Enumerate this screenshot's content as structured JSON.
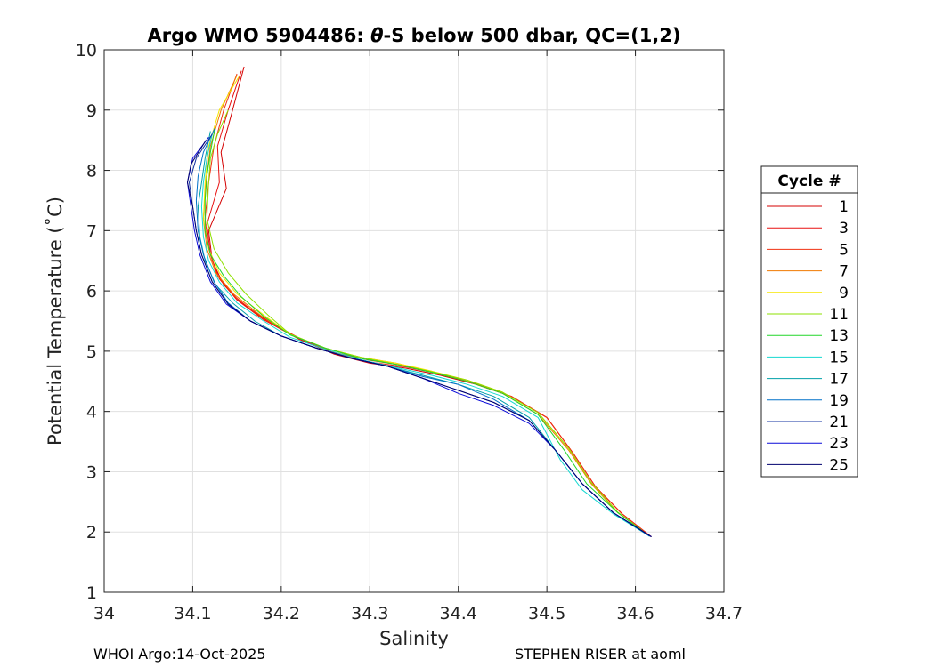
{
  "chart_data": {
    "type": "line",
    "title_prefix": "Argo WMO 5904486: ",
    "title_symbol": "θ",
    "title_suffix": "-S below 500 dbar,  QC=(1,2)",
    "xlabel": "Salinity",
    "ylabel": "Potential Temperature (˚C)",
    "xlim": [
      34.0,
      34.7
    ],
    "ylim": [
      1,
      10
    ],
    "xticks": [
      34,
      34.1,
      34.2,
      34.3,
      34.4,
      34.5,
      34.6,
      34.7
    ],
    "xtick_labels": [
      "34",
      "34.1",
      "34.2",
      "34.3",
      "34.4",
      "34.5",
      "34.6",
      "34.7"
    ],
    "yticks": [
      1,
      2,
      3,
      4,
      5,
      6,
      7,
      8,
      9,
      10
    ],
    "ytick_labels": [
      "1",
      "2",
      "3",
      "4",
      "5",
      "6",
      "7",
      "8",
      "9",
      "10"
    ],
    "grid": true,
    "legend": {
      "title": "Cycle #",
      "position": "outside-right",
      "entries": [
        "1",
        "3",
        "5",
        "7",
        "9",
        "11",
        "13",
        "15",
        "17",
        "19",
        "21",
        "23",
        "25"
      ]
    },
    "series": [
      {
        "name": "1",
        "color": "#d40000",
        "x": [
          34.158,
          34.145,
          34.132,
          34.138,
          34.118,
          34.122,
          34.135,
          34.155,
          34.185,
          34.22,
          34.26,
          34.3,
          34.34,
          34.38,
          34.42,
          34.46,
          34.5,
          34.53,
          34.555,
          34.585,
          34.618
        ],
        "y": [
          9.72,
          9.0,
          8.3,
          7.7,
          7.0,
          6.5,
          6.1,
          5.8,
          5.5,
          5.2,
          4.95,
          4.8,
          4.72,
          4.6,
          4.45,
          4.25,
          3.9,
          3.3,
          2.75,
          2.3,
          1.92
        ]
      },
      {
        "name": "3",
        "color": "#e81010",
        "x": [
          34.155,
          34.14,
          34.128,
          34.13,
          34.116,
          34.12,
          34.13,
          34.15,
          34.18,
          34.22,
          34.26,
          34.3,
          34.34,
          34.38,
          34.42,
          34.46,
          34.5,
          34.53,
          34.555,
          34.585,
          34.618
        ],
        "y": [
          9.65,
          9.0,
          8.4,
          7.8,
          7.1,
          6.6,
          6.2,
          5.85,
          5.52,
          5.2,
          4.97,
          4.82,
          4.74,
          4.62,
          4.45,
          4.25,
          3.9,
          3.3,
          2.75,
          2.3,
          1.92
        ]
      },
      {
        "name": "5",
        "color": "#f03010",
        "x": [
          34.15,
          34.135,
          34.124,
          34.118,
          34.114,
          34.118,
          34.128,
          34.148,
          34.178,
          34.22,
          34.26,
          34.3,
          34.34,
          34.38,
          34.42,
          34.46,
          34.5,
          34.53,
          34.555,
          34.585,
          34.618
        ],
        "y": [
          9.6,
          9.0,
          8.4,
          7.8,
          7.2,
          6.7,
          6.25,
          5.9,
          5.55,
          5.22,
          4.98,
          4.85,
          4.76,
          4.63,
          4.46,
          4.25,
          3.9,
          3.3,
          2.75,
          2.3,
          1.92
        ]
      },
      {
        "name": "7",
        "color": "#f07a00",
        "x": [
          34.15,
          34.132,
          34.12,
          34.115,
          34.112,
          34.116,
          34.126,
          34.146,
          34.176,
          34.21,
          34.25,
          34.29,
          34.33,
          34.37,
          34.41,
          34.45,
          34.49,
          34.525,
          34.55,
          34.58,
          34.616
        ],
        "y": [
          9.58,
          9.0,
          8.4,
          7.8,
          7.2,
          6.7,
          6.3,
          5.95,
          5.6,
          5.28,
          5.05,
          4.9,
          4.8,
          4.66,
          4.5,
          4.3,
          3.95,
          3.35,
          2.8,
          2.32,
          1.93
        ]
      },
      {
        "name": "9",
        "color": "#f5e600",
        "x": [
          34.152,
          34.13,
          34.118,
          34.114,
          34.112,
          34.118,
          34.13,
          34.15,
          34.18,
          34.21,
          34.25,
          34.29,
          34.33,
          34.37,
          34.41,
          34.45,
          34.49,
          34.525,
          34.55,
          34.58,
          34.616
        ],
        "y": [
          9.55,
          9.0,
          8.4,
          7.8,
          7.2,
          6.7,
          6.3,
          5.95,
          5.6,
          5.28,
          5.05,
          4.9,
          4.8,
          4.67,
          4.52,
          4.32,
          3.98,
          3.38,
          2.82,
          2.33,
          1.93
        ]
      },
      {
        "name": "11",
        "color": "#8ee000",
        "x": [
          34.14,
          34.128,
          34.12,
          34.118,
          34.116,
          34.124,
          34.14,
          34.16,
          34.185,
          34.21,
          34.25,
          34.29,
          34.33,
          34.37,
          34.41,
          34.45,
          34.49,
          34.525,
          34.55,
          34.58,
          34.616
        ],
        "y": [
          9.0,
          8.6,
          8.2,
          7.8,
          7.2,
          6.7,
          6.3,
          5.95,
          5.6,
          5.28,
          5.05,
          4.9,
          4.78,
          4.66,
          4.52,
          4.32,
          3.98,
          3.38,
          2.82,
          2.33,
          1.93
        ]
      },
      {
        "name": "13",
        "color": "#22d52a",
        "x": [
          34.125,
          34.12,
          34.116,
          34.114,
          34.114,
          34.12,
          34.135,
          34.155,
          34.18,
          34.21,
          34.25,
          34.29,
          34.33,
          34.37,
          34.41,
          34.45,
          34.49,
          34.52,
          34.545,
          34.58,
          34.616
        ],
        "y": [
          8.7,
          8.3,
          7.9,
          7.5,
          7.0,
          6.6,
          6.25,
          5.9,
          5.58,
          5.27,
          5.05,
          4.88,
          4.78,
          4.65,
          4.5,
          4.3,
          3.95,
          3.35,
          2.8,
          2.32,
          1.93
        ]
      },
      {
        "name": "15",
        "color": "#15d8d0",
        "x": [
          34.122,
          34.116,
          34.112,
          34.11,
          34.112,
          34.118,
          34.13,
          34.15,
          34.18,
          34.21,
          34.25,
          34.29,
          34.33,
          34.37,
          34.41,
          34.45,
          34.49,
          34.515,
          34.54,
          34.575,
          34.616
        ],
        "y": [
          8.6,
          8.2,
          7.8,
          7.4,
          6.9,
          6.5,
          6.15,
          5.8,
          5.5,
          5.23,
          5.03,
          4.86,
          4.73,
          4.6,
          4.45,
          4.25,
          3.9,
          3.2,
          2.7,
          2.3,
          1.93
        ]
      },
      {
        "name": "17",
        "color": "#00a0a8",
        "x": [
          34.12,
          34.114,
          34.11,
          34.106,
          34.108,
          34.114,
          34.126,
          34.145,
          34.17,
          34.2,
          34.24,
          34.28,
          34.32,
          34.36,
          34.4,
          34.44,
          34.48,
          34.51,
          34.54,
          34.575,
          34.616
        ],
        "y": [
          8.65,
          8.2,
          7.8,
          7.4,
          6.9,
          6.5,
          6.1,
          5.8,
          5.5,
          5.25,
          5.05,
          4.88,
          4.75,
          4.6,
          4.45,
          4.25,
          3.9,
          3.35,
          2.8,
          2.32,
          1.93
        ]
      },
      {
        "name": "19",
        "color": "#0070c8",
        "x": [
          34.125,
          34.112,
          34.106,
          34.104,
          34.106,
          34.112,
          34.124,
          34.14,
          34.165,
          34.2,
          34.24,
          34.28,
          34.32,
          34.36,
          34.4,
          34.44,
          34.48,
          34.51,
          34.54,
          34.575,
          34.616
        ],
        "y": [
          8.7,
          8.3,
          7.9,
          7.5,
          7.0,
          6.6,
          6.15,
          5.8,
          5.5,
          5.25,
          5.05,
          4.88,
          4.75,
          4.58,
          4.45,
          4.2,
          3.85,
          3.35,
          2.8,
          2.32,
          1.93
        ]
      },
      {
        "name": "21",
        "color": "#1030a0",
        "x": [
          34.122,
          34.104,
          34.096,
          34.1,
          34.104,
          34.11,
          34.122,
          34.14,
          34.165,
          34.2,
          34.24,
          34.28,
          34.32,
          34.36,
          34.4,
          34.44,
          34.48,
          34.51,
          34.54,
          34.575,
          34.618
        ],
        "y": [
          8.6,
          8.2,
          7.8,
          7.4,
          7.0,
          6.6,
          6.15,
          5.78,
          5.5,
          5.25,
          5.05,
          4.88,
          4.75,
          4.55,
          4.35,
          4.15,
          3.85,
          3.35,
          2.8,
          2.32,
          1.92
        ]
      },
      {
        "name": "23",
        "color": "#0a0ad8",
        "x": [
          34.118,
          34.1,
          34.094,
          34.098,
          34.102,
          34.108,
          34.12,
          34.138,
          34.165,
          34.2,
          34.24,
          34.28,
          34.32,
          34.36,
          34.4,
          34.44,
          34.48,
          34.51,
          34.54,
          34.575,
          34.618
        ],
        "y": [
          8.55,
          8.2,
          7.8,
          7.4,
          7.0,
          6.6,
          6.15,
          5.78,
          5.5,
          5.25,
          5.05,
          4.88,
          4.75,
          4.55,
          4.3,
          4.1,
          3.8,
          3.35,
          2.8,
          2.32,
          1.92
        ]
      },
      {
        "name": "25",
        "color": "#00006e",
        "x": [
          34.115,
          34.098,
          34.094,
          34.1,
          34.104,
          34.11,
          34.122,
          34.14,
          34.165,
          34.2,
          34.24,
          34.28,
          34.32,
          34.36,
          34.4,
          34.44,
          34.48,
          34.51,
          34.54,
          34.575,
          34.618
        ],
        "y": [
          8.5,
          8.1,
          7.8,
          7.4,
          7.0,
          6.6,
          6.15,
          5.78,
          5.5,
          5.25,
          5.05,
          4.88,
          4.75,
          4.55,
          4.35,
          4.15,
          3.85,
          3.35,
          2.8,
          2.32,
          1.92
        ]
      }
    ]
  },
  "footer": {
    "left": "WHOI Argo:14-Oct-2025",
    "right": "STEPHEN RISER at aoml"
  }
}
